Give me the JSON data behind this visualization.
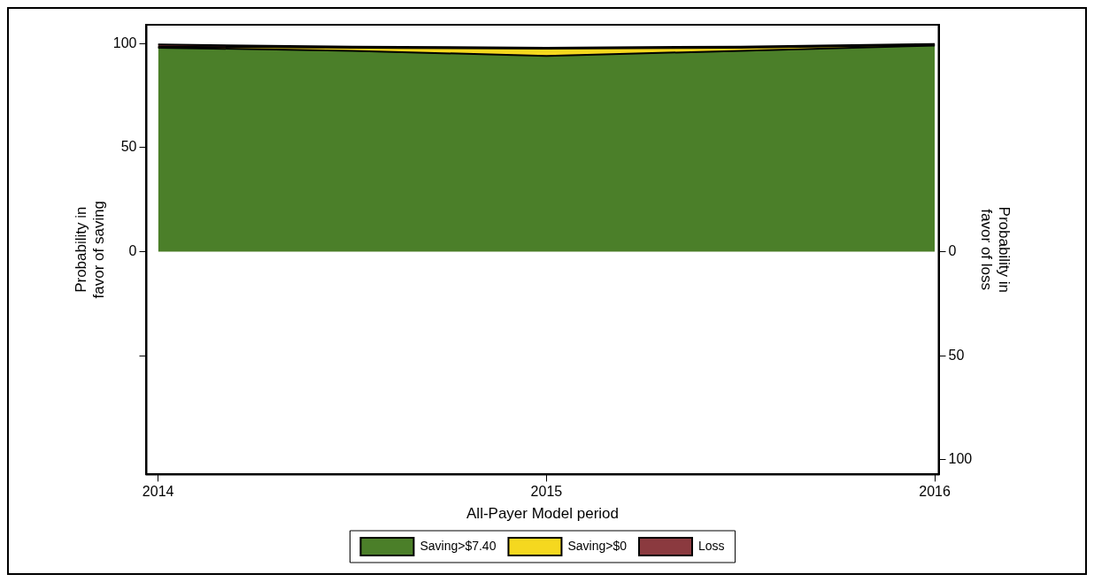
{
  "chart_data": {
    "type": "area",
    "xlabel": "All-Payer Model period",
    "ylabel": "Probability in favor of saving",
    "y2label": "Probability in favor of loss",
    "x": [
      2014,
      2014.5,
      2015,
      2015.5,
      2016
    ],
    "stacked": true,
    "series": [
      {
        "name": "Saving>$7.40",
        "color": "#4b7f29",
        "values": [
          98,
          96.5,
          94,
          96.5,
          99
        ]
      },
      {
        "name": "Saving>$0",
        "color": "#f5d81f",
        "values": [
          0.5,
          1.5,
          3.5,
          1.5,
          0.3
        ]
      },
      {
        "name": "Loss",
        "color": "#8b3a3f",
        "values": [
          1,
          0.5,
          0.5,
          0.5,
          0.5
        ]
      }
    ],
    "xlim": [
      2013.97,
      2016.01
    ],
    "xticks": [
      2014,
      2015,
      2016
    ],
    "ylim": [
      -107,
      109
    ],
    "yticks": [
      100,
      50,
      0,
      {
        "value": -50,
        "label": null
      }
    ],
    "y2lim": [
      107,
      -109
    ],
    "y2ticks": [
      0,
      50,
      100
    ],
    "grid": false,
    "legend": "bottom"
  }
}
